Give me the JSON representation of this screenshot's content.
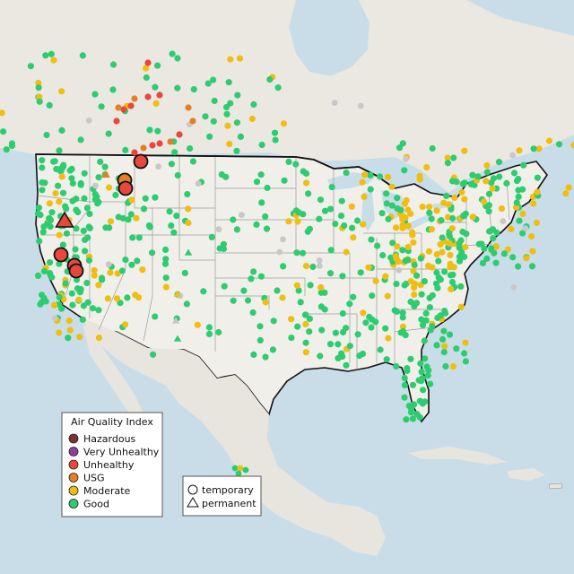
{
  "map": {
    "colors": {
      "water": "#c9dde9",
      "land": "#f0eee9",
      "land_far": "#e6e3dd",
      "border_line": "#111111",
      "state_line": "#9a9a9a",
      "no_data": "#c8c8c8"
    }
  },
  "legend": {
    "title": "Air Quality Index",
    "categories": [
      {
        "key": "hazardous",
        "label": "Hazardous",
        "color": "#7e2f2f"
      },
      {
        "key": "very_unhealthy",
        "label": "Very Unhealthy",
        "color": "#8f3f97"
      },
      {
        "key": "unhealthy",
        "label": "Unhealthy",
        "color": "#e8473c"
      },
      {
        "key": "usg",
        "label": "USG",
        "color": "#e67e22"
      },
      {
        "key": "moderate",
        "label": "Moderate",
        "color": "#f0be12"
      },
      {
        "key": "good",
        "label": "Good",
        "color": "#2ecc71"
      }
    ]
  },
  "shape_legend": {
    "items": [
      {
        "key": "temporary",
        "label": "temporary",
        "shape": "circle"
      },
      {
        "key": "permanent",
        "label": "permanent",
        "shape": "triangle"
      }
    ]
  }
}
